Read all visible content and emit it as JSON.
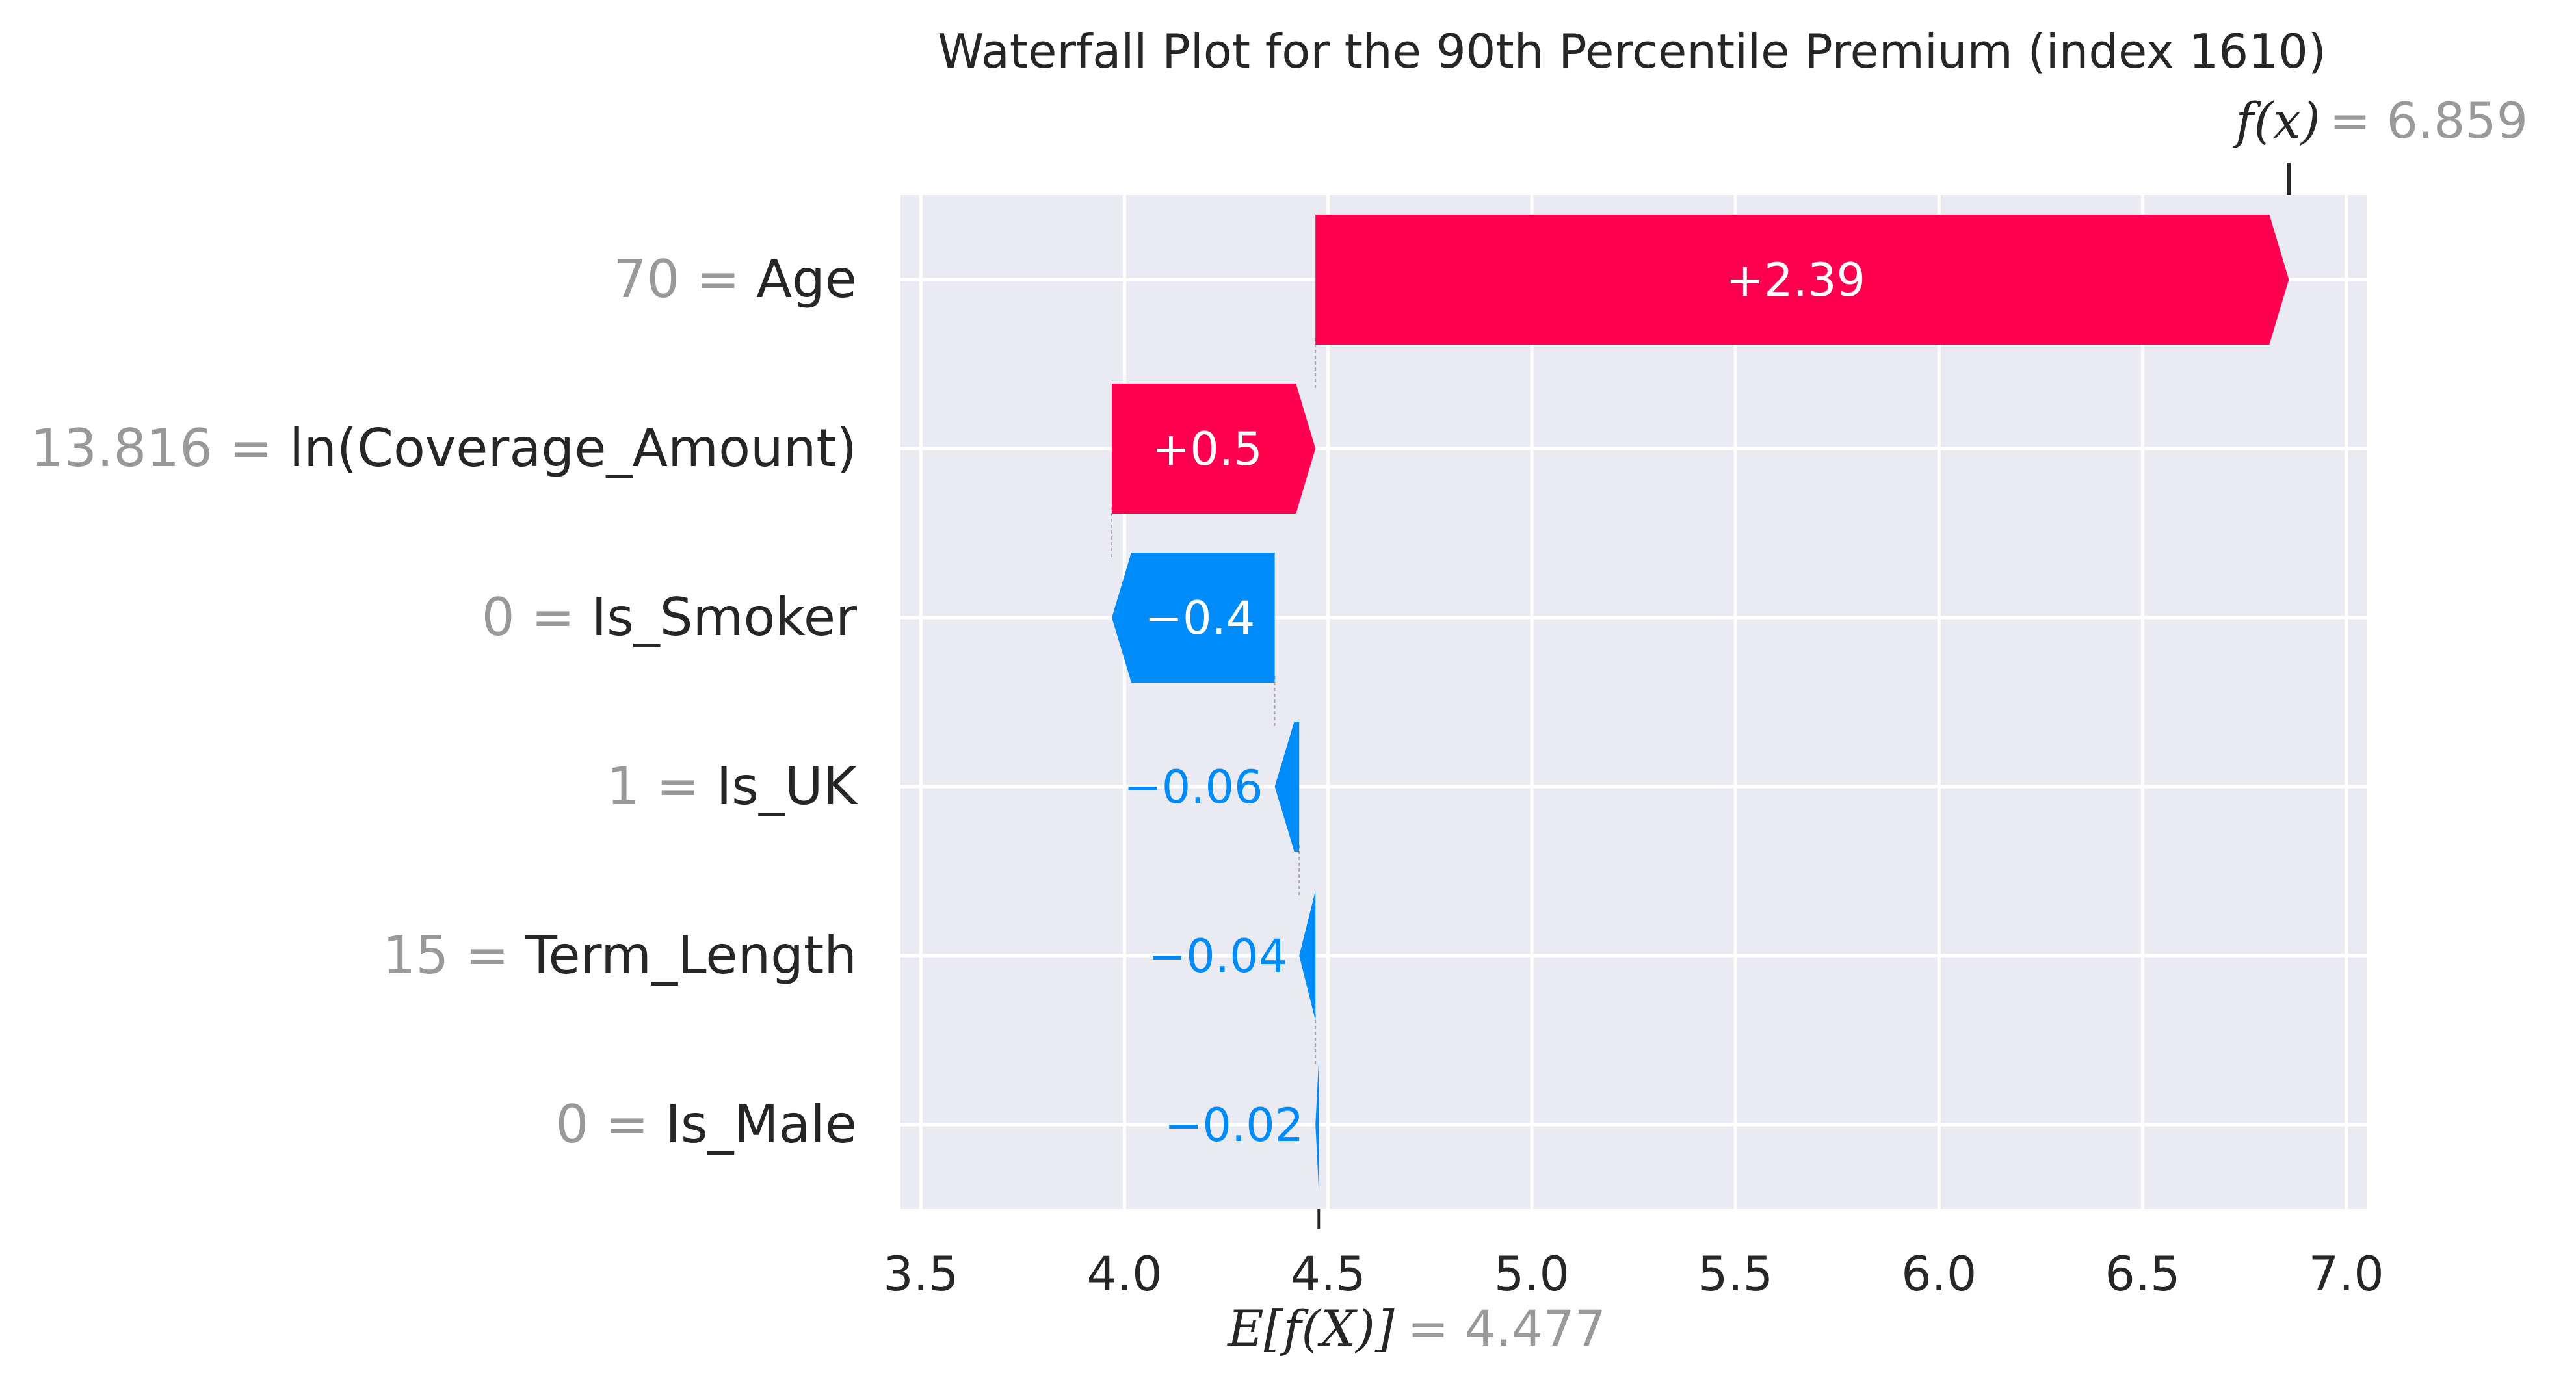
{
  "chart_data": {
    "type": "waterfall",
    "title": "Waterfall Plot for the 90th Percentile Premium (index 1610)",
    "base_value": 4.477,
    "base_value_label": "= 4.477",
    "base_value_symbol": "E[f(X)]",
    "output_value": 6.859,
    "output_value_label": "= 6.859",
    "output_value_symbol": "f(x)",
    "xlim": [
      3.45,
      7.05
    ],
    "x_ticks": [
      3.5,
      4.0,
      4.5,
      5.0,
      5.5,
      6.0,
      6.5,
      7.0
    ],
    "x_tick_labels": [
      "3.5",
      "4.0",
      "4.5",
      "5.0",
      "5.5",
      "6.0",
      "6.5",
      "7.0"
    ],
    "grid": true,
    "features": [
      {
        "value": "70",
        "name": "Age",
        "contribution": 2.39,
        "label": "+2.39",
        "start": 4.4689,
        "end": 6.859
      },
      {
        "value": "13.816",
        "name": "ln(Coverage_Amount)",
        "contribution": 0.5,
        "label": "+0.5",
        "start": 3.9689,
        "end": 4.4689
      },
      {
        "value": "0",
        "name": "Is_Smoker",
        "contribution": -0.4,
        "label": "−0.4",
        "start": 4.3689,
        "end": 3.9689
      },
      {
        "value": "1",
        "name": "Is_UK",
        "contribution": -0.06,
        "label": "−0.06",
        "start": 4.4289,
        "end": 4.3689
      },
      {
        "value": "15",
        "name": "Term_Length",
        "contribution": -0.04,
        "label": "−0.04",
        "start": 4.4689,
        "end": 4.4289
      },
      {
        "value": "0",
        "name": "Is_Male",
        "contribution": -0.02,
        "label": "−0.02",
        "start": 4.477,
        "end": 4.4689
      }
    ],
    "colors": {
      "positive": "#ff0051",
      "negative": "#008bfb",
      "plot_bg": "#eaeaf2",
      "grid": "#ffffff"
    }
  }
}
